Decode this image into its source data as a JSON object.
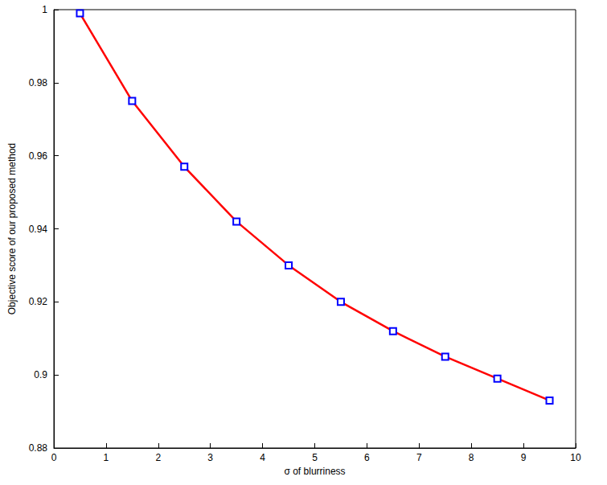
{
  "chart_data": {
    "type": "line",
    "x_label": "σ of blurriness",
    "y_label": "Objective score of our proposed method",
    "x": [
      0.5,
      1.5,
      2.5,
      3.5,
      4.5,
      5.5,
      6.5,
      7.5,
      8.5,
      9.5
    ],
    "series": [
      {
        "name": "Objective score",
        "color": "#ff0000",
        "marker": "square",
        "line_style": "solid",
        "values": [
          0.999,
          0.975,
          0.957,
          0.942,
          0.93,
          0.92,
          0.912,
          0.905,
          0.899,
          0.893
        ]
      }
    ],
    "xlim": [
      0,
      10
    ],
    "xticks": [
      0,
      1,
      2,
      3,
      4,
      5,
      6,
      7,
      8,
      9,
      10
    ],
    "ylim": [
      0.88,
      1
    ],
    "yticks": [
      0.88,
      0.9,
      0.92,
      0.94,
      0.96,
      0.98,
      1
    ],
    "grid": false
  }
}
